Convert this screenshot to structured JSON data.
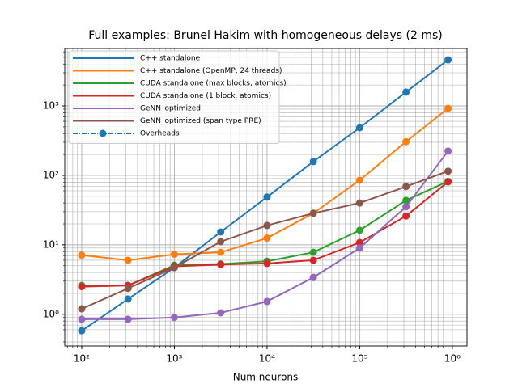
{
  "chart_data": {
    "type": "line",
    "title": "Full examples: Brunel Hakim with homogeneous delays (2 ms)",
    "xlabel": "Num neurons",
    "xscale": "log",
    "yscale": "log",
    "grid": true,
    "legend": "upper left",
    "x": [
      100,
      316,
      1000,
      3162,
      10000,
      31623,
      100000,
      316228,
      900000
    ],
    "xlim": [
      65.6,
      1440000
    ],
    "ylim": [
      0.35,
      6700
    ],
    "xticks": [
      {
        "value": 100,
        "label": "10²"
      },
      {
        "value": 1000,
        "label": "10³"
      },
      {
        "value": 10000,
        "label": "10⁴"
      },
      {
        "value": 100000,
        "label": "10⁵"
      },
      {
        "value": 1000000,
        "label": "10⁶"
      }
    ],
    "yticks": [
      {
        "value": 1,
        "label": "10⁰"
      },
      {
        "value": 10,
        "label": "10¹"
      },
      {
        "value": 100,
        "label": "10²"
      },
      {
        "value": 1000,
        "label": "10³"
      }
    ],
    "series": [
      {
        "name": "C++ standalone",
        "color": "#1f77b4",
        "values": [
          0.58,
          1.66,
          4.7,
          15.3,
          48.7,
          158,
          485,
          1580,
          4600
        ]
      },
      {
        "name": "C++ standalone (OpenMP, 24 threads)",
        "color": "#ff7f0e",
        "values": [
          7.1,
          6.0,
          7.3,
          7.8,
          12.5,
          28.5,
          85,
          306,
          920
        ]
      },
      {
        "name": "CUDA standalone (max blocks, atomics)",
        "color": "#2ca02c",
        "values": [
          2.6,
          2.6,
          5.1,
          5.3,
          5.8,
          7.8,
          16.2,
          43.6,
          82
        ]
      },
      {
        "name": "CUDA standalone (1 block, atomics)",
        "color": "#d62728",
        "values": [
          2.5,
          2.6,
          4.9,
          5.2,
          5.4,
          6.0,
          10.8,
          26,
          80.7
        ]
      },
      {
        "name": "GeNN_optimized",
        "color": "#9467bd",
        "values": [
          0.85,
          0.85,
          0.9,
          1.05,
          1.53,
          3.4,
          9.0,
          35.3,
          224
        ]
      },
      {
        "name": "GeNN_optimized (span type PRE)",
        "color": "#8c564b",
        "values": [
          1.2,
          2.36,
          4.7,
          11.1,
          19,
          28.5,
          40,
          69,
          115
        ]
      },
      {
        "name": "Overheads",
        "color": "#1f77b4",
        "linestyle": "dashdot",
        "values": [
          null,
          null,
          null,
          null,
          null,
          null,
          null,
          null,
          null
        ]
      }
    ]
  }
}
